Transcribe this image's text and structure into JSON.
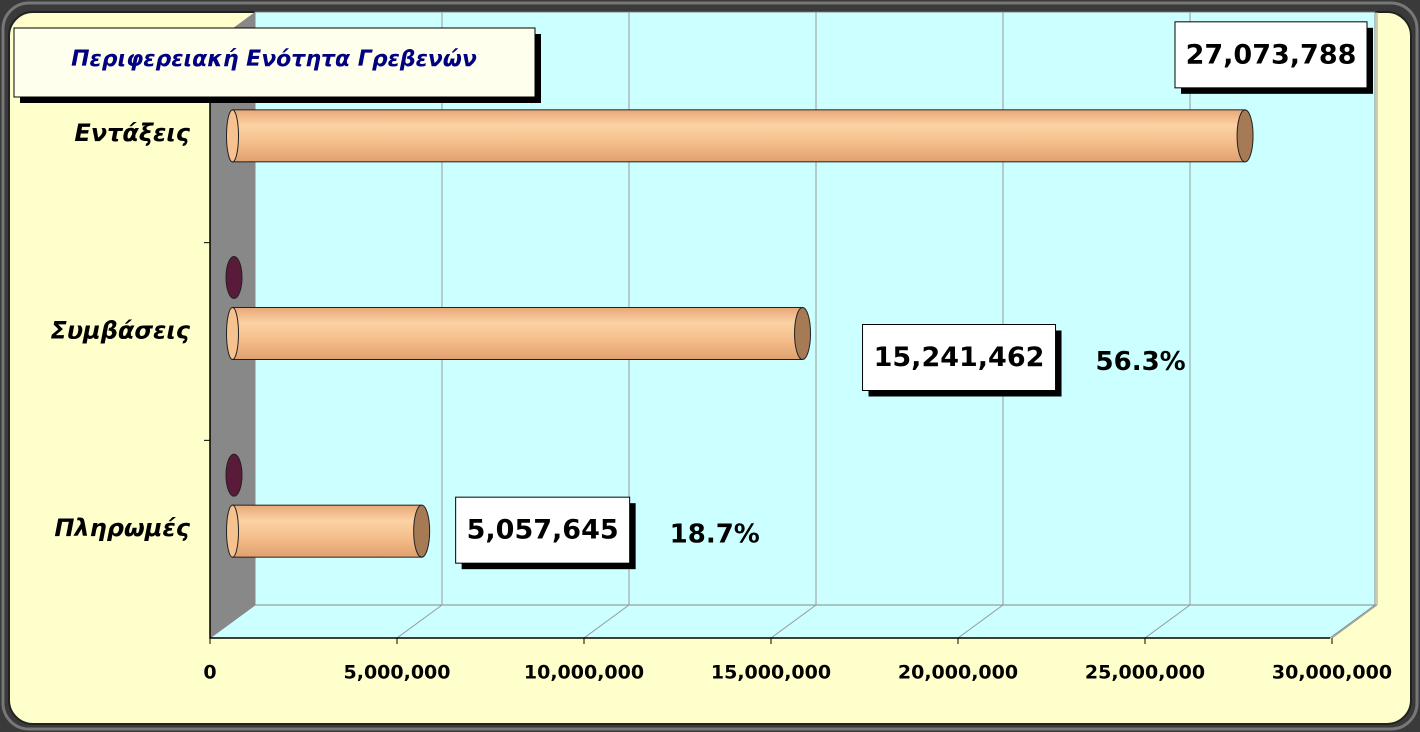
{
  "chart_data": {
    "type": "bar",
    "title": "Περιφερειακή Ενότητα Γρεβενών",
    "categories": [
      "Εντάξεις",
      "Συμβάσεις",
      "Πληρωμές"
    ],
    "values": [
      27073788,
      15241462,
      5057645
    ],
    "value_labels": [
      "27,073,788",
      "15,241,462",
      "5,057,645"
    ],
    "color": "#f6c28f",
    "annotations": [
      {
        "text": "56.3%",
        "value": 56.3
      },
      {
        "text": "18.7%",
        "value": 18.7
      }
    ],
    "xlim": [
      0,
      30000000
    ],
    "xticks": [
      0,
      {
        "value": 5000000,
        "label": "5,000,000"
      },
      {
        "value": 10000000,
        "label": "10,000,000"
      },
      {
        "value": 15000000,
        "label": "15,000,000"
      },
      {
        "value": 20000000,
        "label": "20,000,000"
      },
      {
        "value": 25000000,
        "label": "25,000,000"
      },
      {
        "value": 30000000,
        "label": "30,000,000"
      }
    ],
    "grid": true
  }
}
